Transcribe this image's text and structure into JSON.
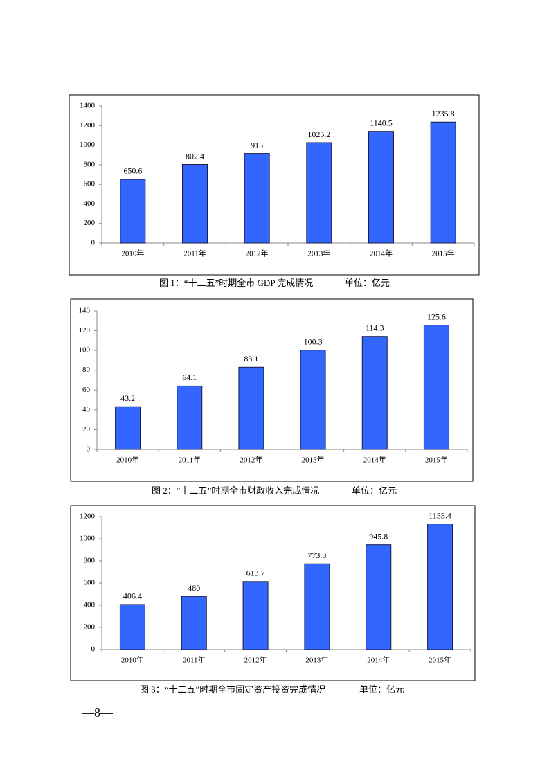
{
  "chart_data": [
    {
      "type": "bar",
      "title": "图 1：“十二五”时期全市 GDP 完成情况",
      "unit": "单位：亿元",
      "categories": [
        "2010年",
        "2011年",
        "2012年",
        "2013年",
        "2014年",
        "2015年"
      ],
      "values": [
        650.6,
        802.4,
        915,
        1025.2,
        1140.5,
        1235.8
      ],
      "color": "#3366ff",
      "ylim": [
        0,
        1400
      ],
      "yticks": [
        0,
        200,
        400,
        600,
        800,
        1000,
        1200,
        1400
      ],
      "grid": false
    },
    {
      "type": "bar",
      "title": "图 2：“十二五”时期全市财政收入完成情况",
      "unit": "单位：亿元",
      "categories": [
        "2010年",
        "2011年",
        "2012年",
        "2013年",
        "2014年",
        "2015年"
      ],
      "values": [
        43.2,
        64.1,
        83.1,
        100.3,
        114.3,
        125.6
      ],
      "color": "#3366ff",
      "ylim": [
        0,
        140
      ],
      "yticks": [
        0,
        20,
        40,
        60,
        80,
        100,
        120,
        140
      ],
      "grid": false
    },
    {
      "type": "bar",
      "title": "图 3：“十二五”时期全市固定资产投资完成情况",
      "unit": "单位：亿元",
      "categories": [
        "2010年",
        "2011年",
        "2012年",
        "2013年",
        "2014年",
        "2015年"
      ],
      "values": [
        406.4,
        480,
        613.7,
        773.3,
        945.8,
        1133.4
      ],
      "color": "#3366ff",
      "ylim": [
        0,
        1200
      ],
      "yticks": [
        0,
        200,
        400,
        600,
        800,
        1000,
        1200
      ],
      "grid": false
    }
  ],
  "page_number": "—8—"
}
